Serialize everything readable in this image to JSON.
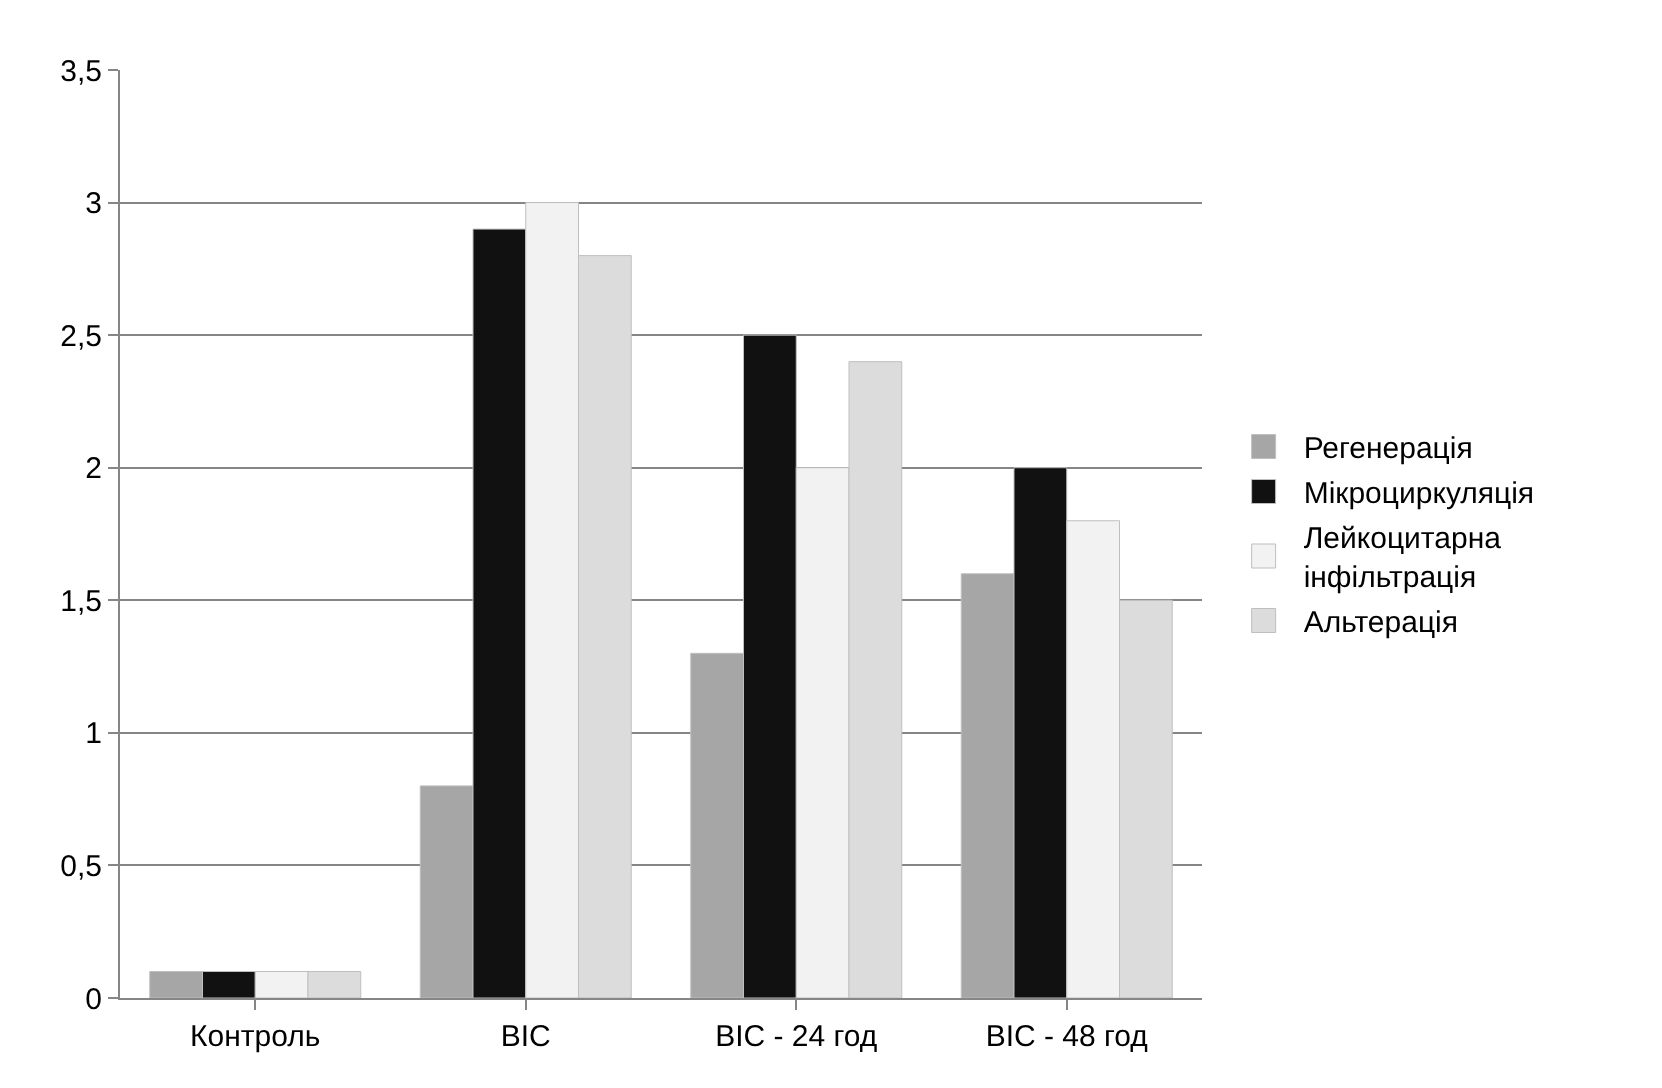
{
  "chart_data": {
    "type": "bar",
    "categories": [
      "Контроль",
      "ВІС",
      "ВІС - 24 год",
      "ВІС - 48 год"
    ],
    "series": [
      {
        "name": "Регенерація",
        "color": "#a6a6a6",
        "values": [
          0.1,
          0.8,
          1.3,
          1.6
        ]
      },
      {
        "name": "Мікроциркуляція",
        "color": "#111111",
        "values": [
          0.1,
          2.9,
          2.5,
          2.0
        ]
      },
      {
        "name": "Лейкоцитарна інфільтрація",
        "color": "#f2f2f2",
        "values": [
          0.1,
          3.0,
          2.0,
          1.8
        ]
      },
      {
        "name": "Альтерація",
        "color": "#dcdcdc",
        "values": [
          0.1,
          2.8,
          2.4,
          1.5
        ]
      }
    ],
    "ylim": [
      0,
      3.5
    ],
    "yticks": [
      0,
      {
        "value": 0.5,
        "label": "0,5"
      },
      1,
      {
        "value": 1.5,
        "label": "1,5"
      },
      2,
      {
        "value": 2.5,
        "label": "2,5"
      },
      3,
      {
        "value": 3.5,
        "label": "3,5"
      }
    ],
    "grid": "y",
    "legend": "right"
  }
}
